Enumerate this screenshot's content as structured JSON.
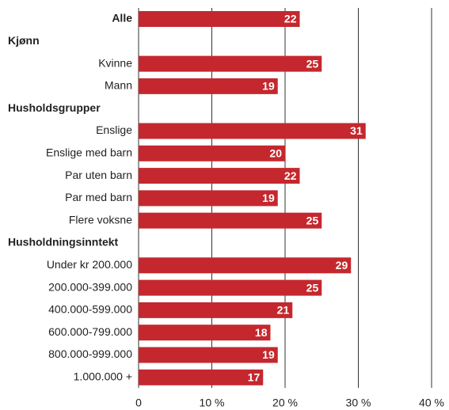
{
  "chart_data": {
    "type": "bar",
    "orientation": "horizontal",
    "categories": [
      "Alle",
      "Kjønn",
      "Kvinne",
      "Mann",
      "Husholdsgrupper",
      "Enslige",
      "Enslige med barn",
      "Par uten barn",
      "Par med barn",
      "Flere voksne",
      "Husholdningsinntekt",
      "Under kr 200.000",
      "200.000-399.000",
      "400.000-599.000",
      "600.000-799.000",
      "800.000-999.000",
      "1.000.000 +"
    ],
    "values": [
      22,
      null,
      25,
      19,
      null,
      31,
      20,
      22,
      19,
      25,
      null,
      29,
      25,
      21,
      18,
      19,
      17
    ],
    "bold": [
      true,
      true,
      false,
      false,
      true,
      false,
      false,
      false,
      false,
      false,
      true,
      false,
      false,
      false,
      false,
      false,
      false
    ],
    "color": "#c4282e",
    "xlim": [
      0,
      40
    ],
    "xticks": [
      0,
      {
        "value": 10,
        "label": "10 %"
      },
      {
        "value": 20,
        "label": "20 %"
      },
      {
        "value": 30,
        "label": "30 %"
      },
      {
        "value": 40,
        "label": "40 %"
      }
    ],
    "grid": true
  }
}
